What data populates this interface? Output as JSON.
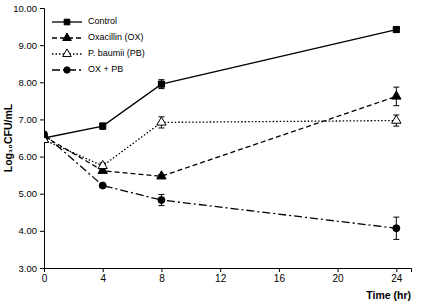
{
  "chart_data": {
    "type": "line",
    "x_label": "Time (hr)",
    "y_label": "Log₁₀CFU/mL",
    "x": [
      0,
      4,
      8,
      24
    ],
    "xlim": [
      0,
      25
    ],
    "xticks": [
      0,
      4,
      8,
      12,
      16,
      20,
      24
    ],
    "ylim": [
      3,
      10
    ],
    "yticks": [
      {
        "value": 3,
        "label": "3.00"
      },
      {
        "value": 4,
        "label": "4.00"
      },
      {
        "value": 5,
        "label": "5.00"
      },
      {
        "value": 6,
        "label": "6.00"
      },
      {
        "value": 7,
        "label": "7.00"
      },
      {
        "value": 8,
        "label": "8.00"
      },
      {
        "value": 9,
        "label": "9.00"
      },
      {
        "value": 10,
        "label": "10.00"
      }
    ],
    "grid": false,
    "legend": "top-left",
    "series": [
      {
        "name": "Control",
        "color": "#000000",
        "marker": "square",
        "line_style": "solid",
        "values": [
          6.5,
          6.82,
          7.95,
          9.42
        ],
        "errors": [
          0.05,
          0.08,
          0.12,
          0.08
        ]
      },
      {
        "name": "Oxacillin (OX)",
        "color": "#000000",
        "marker": "triangle",
        "line_style": "dashed",
        "values": [
          6.55,
          5.62,
          5.47,
          7.62
        ],
        "errors": [
          0.05,
          0.05,
          0.05,
          0.25
        ]
      },
      {
        "name": "P. baumii (PB)",
        "color": "#000000",
        "marker": "triangle-open",
        "line_style": "dotted",
        "values": [
          6.45,
          5.75,
          6.92,
          6.97
        ],
        "errors": [
          0.05,
          0.08,
          0.15,
          0.15
        ]
      },
      {
        "name": "OX + PB",
        "color": "#000000",
        "marker": "circle",
        "line_style": "dashdot",
        "values": [
          6.6,
          5.22,
          4.83,
          4.07
        ],
        "errors": [
          0.05,
          0.03,
          0.15,
          0.3
        ]
      }
    ]
  }
}
